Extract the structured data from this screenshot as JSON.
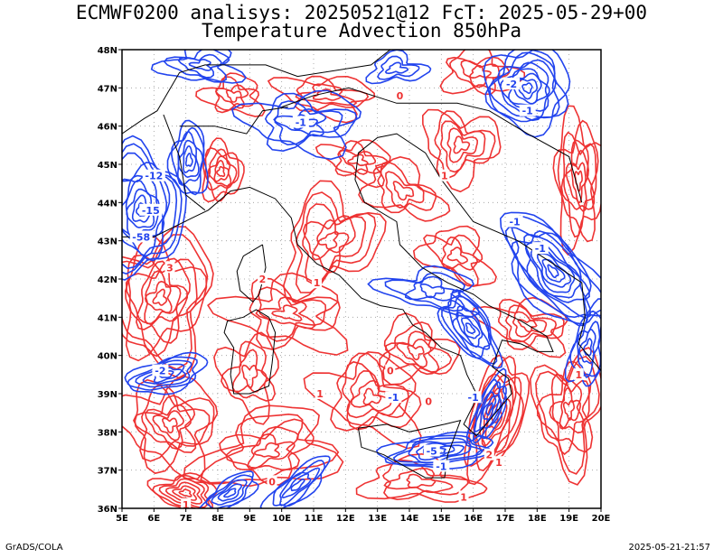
{
  "header": {
    "title_line1": "ECMWF0200 analisys: 20250521@12 FcT: 2025-05-29+00",
    "title_line2": "Temperature Advection 850hPa"
  },
  "footer": {
    "left": "GrADS/COLA",
    "right": "2025-05-21-21:57"
  },
  "axes": {
    "lon_labels": [
      "5E",
      "6E",
      "7E",
      "8E",
      "9E",
      "10E",
      "11E",
      "12E",
      "13E",
      "14E",
      "15E",
      "16E",
      "17E",
      "18E",
      "19E",
      "20E"
    ],
    "lat_labels": [
      "48N",
      "47N",
      "46N",
      "45N",
      "44N",
      "43N",
      "42N",
      "41N",
      "40N",
      "39N",
      "38N",
      "37N",
      "36N"
    ],
    "lon_range": [
      5,
      20
    ],
    "lat_range": [
      36,
      48
    ],
    "grid": "dotted"
  },
  "colors": {
    "warm_advection": "#ee3333",
    "cold_advection": "#2244ee",
    "coastline": "#000000",
    "frame": "#000000"
  },
  "contour_labels": [
    {
      "text": "-15",
      "lon": 5.9,
      "lat": 43.8,
      "color": "cold"
    },
    {
      "text": "-58",
      "lon": 5.6,
      "lat": 43.1,
      "color": "cold"
    },
    {
      "text": "-12",
      "lon": 6.0,
      "lat": 44.7,
      "color": "cold"
    },
    {
      "text": "-1",
      "lon": 17.3,
      "lat": 43.5,
      "color": "cold"
    },
    {
      "text": "-5",
      "lon": 14.7,
      "lat": 37.5,
      "color": "cold"
    },
    {
      "text": "-1",
      "lon": 15.0,
      "lat": 37.1,
      "color": "cold"
    },
    {
      "text": "-1",
      "lon": 16.0,
      "lat": 38.9,
      "color": "cold"
    },
    {
      "text": "-1",
      "lon": 10.6,
      "lat": 46.1,
      "color": "cold"
    },
    {
      "text": "-1",
      "lon": 17.7,
      "lat": 46.4,
      "color": "cold"
    },
    {
      "text": "-2",
      "lon": 17.2,
      "lat": 47.1,
      "color": "cold"
    },
    {
      "text": "-1",
      "lon": 18.1,
      "lat": 42.8,
      "color": "cold"
    },
    {
      "text": "-2",
      "lon": 6.2,
      "lat": 39.6,
      "color": "cold"
    },
    {
      "text": "-1",
      "lon": 13.5,
      "lat": 38.9,
      "color": "cold"
    },
    {
      "text": "1",
      "lon": 11.1,
      "lat": 41.9,
      "color": "warm"
    },
    {
      "text": "0",
      "lon": 13.4,
      "lat": 39.6,
      "color": "warm"
    },
    {
      "text": "1",
      "lon": 11.2,
      "lat": 39.0,
      "color": "warm"
    },
    {
      "text": "2",
      "lon": 9.4,
      "lat": 42.0,
      "color": "warm"
    },
    {
      "text": "3",
      "lon": 6.5,
      "lat": 42.3,
      "color": "warm"
    },
    {
      "text": "1",
      "lon": 16.8,
      "lat": 37.2,
      "color": "warm"
    },
    {
      "text": "2",
      "lon": 16.5,
      "lat": 37.4,
      "color": "warm"
    },
    {
      "text": "1",
      "lon": 19.3,
      "lat": 39.5,
      "color": "warm"
    },
    {
      "text": "0",
      "lon": 14.6,
      "lat": 38.8,
      "color": "warm"
    },
    {
      "text": "1",
      "lon": 15.7,
      "lat": 36.3,
      "color": "warm"
    },
    {
      "text": "1",
      "lon": 7.0,
      "lat": 36.1,
      "color": "warm"
    },
    {
      "text": "0",
      "lon": 9.7,
      "lat": 36.7,
      "color": "warm"
    },
    {
      "text": "1",
      "lon": 15.1,
      "lat": 44.7,
      "color": "warm"
    },
    {
      "text": "0",
      "lon": 13.7,
      "lat": 46.8,
      "color": "warm"
    }
  ]
}
